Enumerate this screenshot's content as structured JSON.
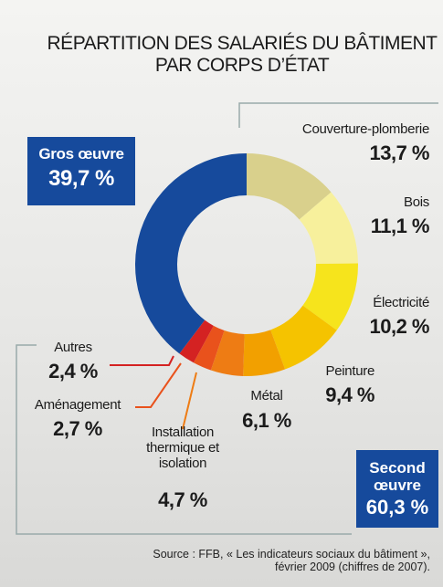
{
  "chart_data": {
    "type": "donut",
    "title": "RÉPARTITION DES SALARIÉS DU BÂTIMENT PAR CORPS D’ÉTAT",
    "categories": [
      "Couverture-plomberie",
      "Bois",
      "Électricité",
      "Peinture",
      "Métal",
      "Installation thermique et isolation",
      "Aménagement",
      "Autres",
      "Gros œuvre"
    ],
    "values": [
      13.7,
      11.1,
      10.2,
      9.4,
      6.1,
      4.7,
      2.7,
      2.4,
      39.7
    ],
    "value_labels": [
      "13,7 %",
      "11,1 %",
      "10,2 %",
      "9,4 %",
      "6,1 %",
      "4,7 %",
      "2,7 %",
      "2,4 %",
      "39,7 %"
    ],
    "colors": [
      "#d9d08c",
      "#f7f09c",
      "#f6e41c",
      "#f5c300",
      "#f2a000",
      "#ee7c14",
      "#e9521c",
      "#d42222",
      "#164a9c"
    ],
    "second_oeuvre": {
      "label": "Second œuvre",
      "value_label": "60,3 %"
    },
    "source": "Source : FFB, « Les indicateurs sociaux du bâtiment », février 2009 (chiffres de 2007)."
  }
}
